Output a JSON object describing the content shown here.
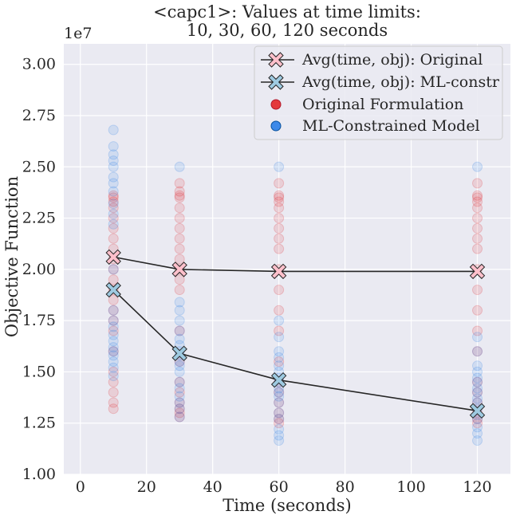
{
  "chart_data": {
    "type": "scatter",
    "title_line1": "<capc1>: Values at time limits:",
    "title_line2": "10, 30, 60, 120 seconds",
    "xlabel": "Time (seconds)",
    "ylabel": "Objective Function",
    "y_scale_label": "1e7",
    "xlim": [
      -5,
      130
    ],
    "ylim": [
      1.0,
      3.1
    ],
    "x_ticks": [
      0,
      20,
      40,
      60,
      80,
      100,
      120
    ],
    "x_tick_labels": [
      "0",
      "20",
      "40",
      "60",
      "80",
      "100",
      "120"
    ],
    "y_ticks": [
      1.0,
      1.25,
      1.5,
      1.75,
      2.0,
      2.25,
      2.5,
      2.75,
      3.0
    ],
    "y_tick_labels": [
      "1.00",
      "1.25",
      "1.50",
      "1.75",
      "2.00",
      "2.25",
      "2.50",
      "2.75",
      "3.00"
    ],
    "grid": true,
    "legend_position": "top-right",
    "background": "#eaeaf2",
    "series": [
      {
        "name": "Avg(time, obj): Original",
        "kind": "line",
        "color": "#ffc0cb",
        "x": [
          10,
          30,
          60,
          120
        ],
        "y": [
          2.06,
          2.0,
          1.99,
          1.99
        ]
      },
      {
        "name": "Avg(time, obj): ML-constr",
        "kind": "line",
        "color": "#9ecae1",
        "x": [
          10,
          30,
          60,
          120
        ],
        "y": [
          1.9,
          1.59,
          1.46,
          1.31
        ]
      },
      {
        "name": "Original Formulation",
        "kind": "scatter",
        "color": "#e31a1c",
        "x": [
          10,
          10,
          10,
          10,
          10,
          10,
          10,
          10,
          10,
          10,
          10,
          10,
          10,
          10,
          10,
          10,
          10,
          10,
          10,
          10,
          10,
          10,
          30,
          30,
          30,
          30,
          30,
          30,
          30,
          30,
          30,
          30,
          30,
          30,
          30,
          30,
          30,
          30,
          30,
          30,
          30,
          30,
          30,
          60,
          60,
          60,
          60,
          60,
          60,
          60,
          60,
          60,
          60,
          60,
          60,
          60,
          60,
          60,
          60,
          60,
          60,
          60,
          60,
          120,
          120,
          120,
          120,
          120,
          120,
          120,
          120,
          120,
          120,
          120,
          120,
          120,
          120,
          120,
          120,
          120,
          120,
          120,
          120
        ],
        "y": [
          2.36,
          2.35,
          2.3,
          2.25,
          2.2,
          2.15,
          2.1,
          2.05,
          2.0,
          1.95,
          1.9,
          1.85,
          1.8,
          1.75,
          1.7,
          1.6,
          1.5,
          1.45,
          1.4,
          1.35,
          1.32,
          2.33,
          2.42,
          2.36,
          2.35,
          2.3,
          2.25,
          2.2,
          2.15,
          2.1,
          2.05,
          2.0,
          1.95,
          1.9,
          1.7,
          1.55,
          1.45,
          1.4,
          1.35,
          1.32,
          1.3,
          1.28,
          2.38,
          2.42,
          2.36,
          2.35,
          2.3,
          2.25,
          2.2,
          2.15,
          2.1,
          2.0,
          1.9,
          1.8,
          1.7,
          1.55,
          1.45,
          1.4,
          1.35,
          1.3,
          1.27,
          1.25,
          2.33,
          2.42,
          2.36,
          2.35,
          2.3,
          2.25,
          2.2,
          2.15,
          2.1,
          2.0,
          1.9,
          1.8,
          1.7,
          1.6,
          1.45,
          1.4,
          1.35,
          1.3,
          1.27,
          1.25,
          2.33
        ]
      },
      {
        "name": "ML-Constrained Model",
        "kind": "scatter",
        "color": "#1f78e8",
        "x": [
          10,
          10,
          10,
          10,
          10,
          10,
          10,
          10,
          10,
          10,
          10,
          10,
          10,
          10,
          10,
          10,
          10,
          10,
          10,
          10,
          10,
          10,
          10,
          30,
          30,
          30,
          30,
          30,
          30,
          30,
          30,
          30,
          30,
          30,
          30,
          30,
          30,
          30,
          30,
          30,
          30,
          60,
          60,
          60,
          60,
          60,
          60,
          60,
          60,
          60,
          60,
          60,
          60,
          60,
          60,
          60,
          60,
          60,
          60,
          120,
          120,
          120,
          120,
          120,
          120,
          120,
          120,
          120,
          120,
          120,
          120,
          120,
          120,
          120,
          120,
          120
        ],
        "y": [
          2.68,
          2.6,
          2.56,
          2.53,
          2.5,
          2.45,
          2.42,
          2.38,
          2.32,
          2.27,
          2.22,
          2.0,
          1.8,
          1.72,
          1.68,
          1.65,
          1.62,
          1.6,
          1.58,
          1.55,
          1.52,
          1.48,
          1.75,
          2.5,
          1.84,
          1.8,
          1.75,
          1.7,
          1.66,
          1.63,
          1.6,
          1.58,
          1.55,
          1.53,
          1.5,
          1.45,
          1.42,
          1.38,
          1.35,
          1.32,
          1.28,
          2.5,
          1.75,
          1.67,
          1.6,
          1.57,
          1.53,
          1.5,
          1.47,
          1.45,
          1.42,
          1.4,
          1.38,
          1.35,
          1.3,
          1.27,
          1.22,
          1.19,
          1.165,
          2.5,
          1.67,
          1.6,
          1.53,
          1.5,
          1.47,
          1.45,
          1.42,
          1.4,
          1.37,
          1.35,
          1.32,
          1.29,
          1.27,
          1.23,
          1.2,
          1.165
        ]
      }
    ]
  }
}
